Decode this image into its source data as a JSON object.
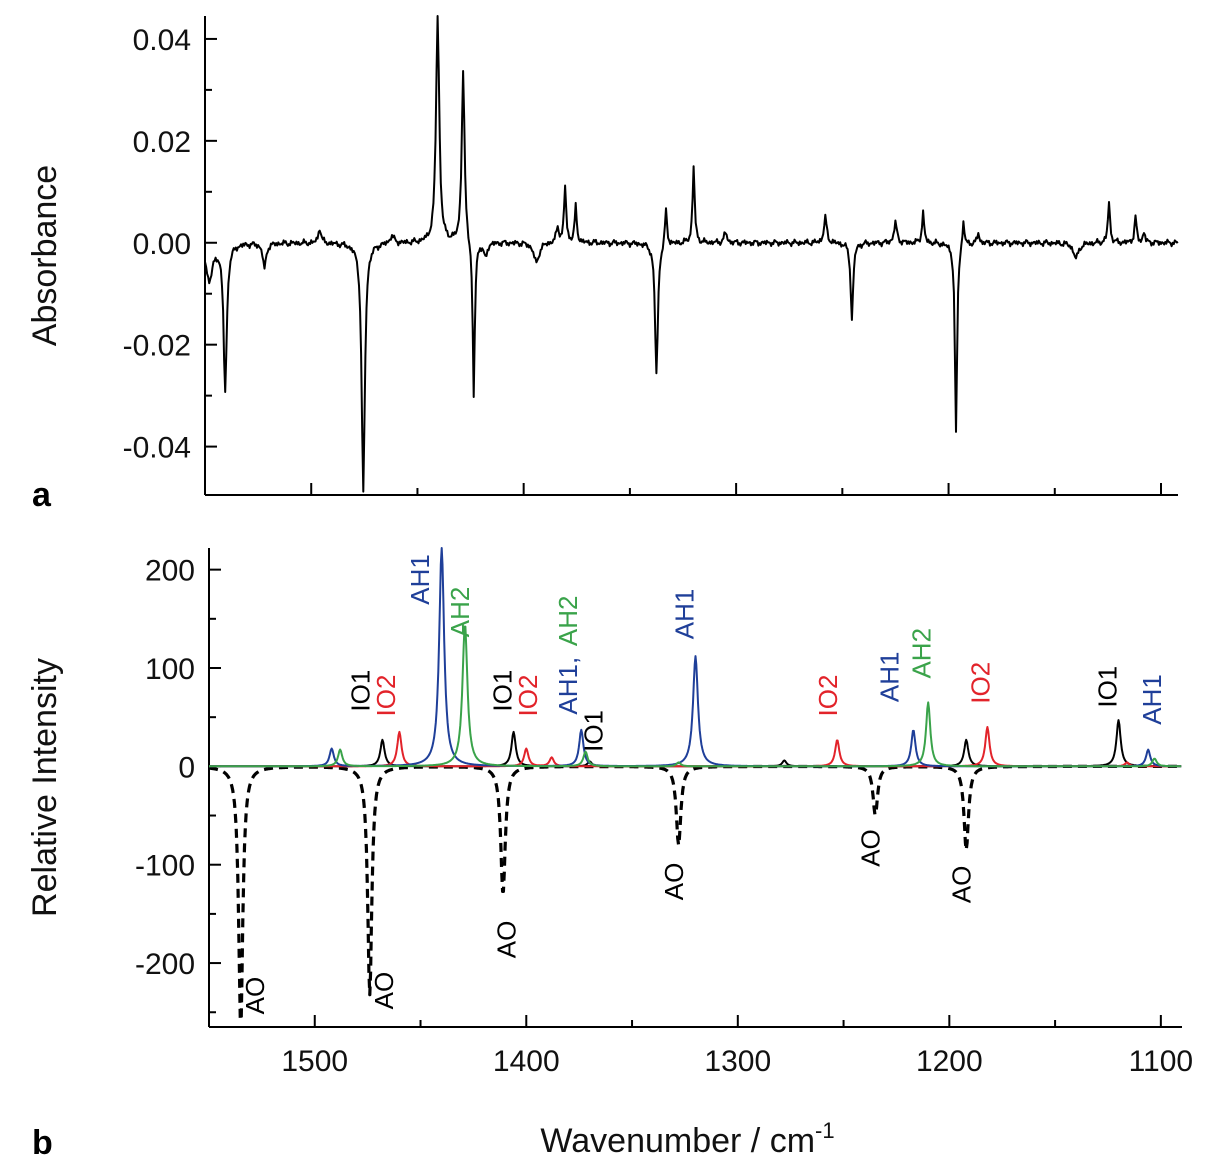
{
  "colors": {
    "black": "#000000",
    "blue": "#1f3f99",
    "green": "#3aa34a",
    "red": "#e2232a"
  },
  "chart_data": [
    {
      "panel": "a",
      "type": "line",
      "ylabel": "Absorbance",
      "xlim": [
        1550,
        1092
      ],
      "ylim": [
        -0.0495,
        0.0445
      ],
      "x_ticks": [
        1500,
        1400,
        1300,
        1200,
        1100
      ],
      "y_ticks": [
        0.04,
        0.02,
        0.0,
        -0.02,
        -0.04
      ],
      "y_tick_labels": [
        "0.04",
        "0.02",
        "0.00",
        "-0.02",
        "-0.04"
      ],
      "series": [
        {
          "color": "#000000",
          "baseline": 0.0,
          "peaks": [
            {
              "x": 1548,
              "y": -0.007,
              "w": 2.0
            },
            {
              "x": 1540.5,
              "y": -0.029,
              "w": 0.9
            },
            {
              "x": 1522,
              "y": -0.005,
              "w": 0.9
            },
            {
              "x": 1496,
              "y": 0.003,
              "w": 0.8
            },
            {
              "x": 1475.5,
              "y": -0.049,
              "w": 0.9
            },
            {
              "x": 1462,
              "y": 0.0015,
              "w": 1.2
            },
            {
              "x": 1440.5,
              "y": 0.045,
              "w": 0.9
            },
            {
              "x": 1428.5,
              "y": 0.034,
              "w": 0.8
            },
            {
              "x": 1423.5,
              "y": -0.031,
              "w": 0.6
            },
            {
              "x": 1418,
              "y": -0.003,
              "w": 0.9
            },
            {
              "x": 1394,
              "y": -0.004,
              "w": 1.5
            },
            {
              "x": 1384,
              "y": 0.003,
              "w": 0.8
            },
            {
              "x": 1380.5,
              "y": 0.011,
              "w": 0.6
            },
            {
              "x": 1375.5,
              "y": 0.007,
              "w": 0.6
            },
            {
              "x": 1337.5,
              "y": -0.026,
              "w": 0.8
            },
            {
              "x": 1333,
              "y": 0.007,
              "w": 0.6
            },
            {
              "x": 1320,
              "y": 0.015,
              "w": 0.6
            },
            {
              "x": 1305,
              "y": 0.002,
              "w": 0.8
            },
            {
              "x": 1258,
              "y": 0.005,
              "w": 0.8
            },
            {
              "x": 1245.5,
              "y": -0.015,
              "w": 0.7
            },
            {
              "x": 1225,
              "y": 0.004,
              "w": 0.8
            },
            {
              "x": 1212,
              "y": 0.006,
              "w": 0.6
            },
            {
              "x": 1196.5,
              "y": -0.038,
              "w": 0.6
            },
            {
              "x": 1193,
              "y": 0.005,
              "w": 0.6
            },
            {
              "x": 1186,
              "y": 0.002,
              "w": 0.6
            },
            {
              "x": 1140,
              "y": -0.003,
              "w": 1.5
            },
            {
              "x": 1124.5,
              "y": 0.008,
              "w": 0.6
            },
            {
              "x": 1112,
              "y": 0.005,
              "w": 0.6
            },
            {
              "x": 1108,
              "y": 0.002,
              "w": 0.6
            }
          ]
        }
      ]
    },
    {
      "panel": "b",
      "type": "line",
      "xlabel": "Wavenumber / cm",
      "xlabel_superscript": "-1",
      "ylabel": "Relative Intensity",
      "xlim": [
        1550,
        1090
      ],
      "ylim": [
        -265,
        222
      ],
      "x_ticks": [
        1500,
        1400,
        1300,
        1200,
        1100
      ],
      "x_tick_labels": [
        "1500",
        "1400",
        "1300",
        "1200",
        "1100"
      ],
      "y_ticks": [
        200,
        100,
        0,
        -100,
        -200
      ],
      "y_tick_labels": [
        "200",
        "100",
        "0",
        "-100",
        "-200"
      ],
      "series": [
        {
          "label": "AO",
          "color": "#000000",
          "dashed": true,
          "peaks": [
            {
              "x": 1535,
              "y": -265,
              "w": 1.2
            },
            {
              "x": 1474,
              "y": -232,
              "w": 1.2
            },
            {
              "x": 1411,
              "y": -130,
              "w": 1.3
            },
            {
              "x": 1328,
              "y": -80,
              "w": 1.3
            },
            {
              "x": 1235,
              "y": -50,
              "w": 1.3
            },
            {
              "x": 1192,
              "y": -85,
              "w": 1.3
            }
          ]
        },
        {
          "label": "IO1",
          "color": "#000000",
          "dashed": false,
          "peaks": [
            {
              "x": 1468,
              "y": 27,
              "w": 1.2
            },
            {
              "x": 1406,
              "y": 35,
              "w": 1.2
            },
            {
              "x": 1370,
              "y": 5,
              "w": 1.2
            },
            {
              "x": 1278,
              "y": 6,
              "w": 1.2
            },
            {
              "x": 1192,
              "y": 27,
              "w": 1.2
            },
            {
              "x": 1120,
              "y": 47,
              "w": 1.2
            }
          ]
        },
        {
          "label": "IO2",
          "color": "#e2232a",
          "dashed": false,
          "peaks": [
            {
              "x": 1460,
              "y": 35,
              "w": 1.2
            },
            {
              "x": 1400,
              "y": 18,
              "w": 1.2
            },
            {
              "x": 1388,
              "y": 9,
              "w": 1.2
            },
            {
              "x": 1253,
              "y": 27,
              "w": 1.2
            },
            {
              "x": 1182,
              "y": 40,
              "w": 1.2
            },
            {
              "x": 1116,
              "y": 4,
              "w": 1.2
            }
          ]
        },
        {
          "label": "AH1",
          "color": "#1f3f99",
          "dashed": false,
          "peaks": [
            {
              "x": 1492,
              "y": 18,
              "w": 1.2
            },
            {
              "x": 1440,
              "y": 222,
              "w": 1.4
            },
            {
              "x": 1374,
              "y": 37,
              "w": 1.2
            },
            {
              "x": 1320,
              "y": 112,
              "w": 1.4
            },
            {
              "x": 1217,
              "y": 37,
              "w": 1.2
            },
            {
              "x": 1106,
              "y": 17,
              "w": 1.2
            }
          ]
        },
        {
          "label": "AH2",
          "color": "#3aa34a",
          "dashed": false,
          "peaks": [
            {
              "x": 1488,
              "y": 17,
              "w": 1.2
            },
            {
              "x": 1429,
              "y": 145,
              "w": 1.4
            },
            {
              "x": 1372,
              "y": 15,
              "w": 1.2
            },
            {
              "x": 1328,
              "y": 4,
              "w": 1.2
            },
            {
              "x": 1210,
              "y": 65,
              "w": 1.2
            },
            {
              "x": 1103,
              "y": 8,
              "w": 1.2
            }
          ]
        }
      ],
      "annotations": [
        {
          "text": "AO",
          "color": "#000000",
          "x": 1524,
          "y": -233
        },
        {
          "text": "AO",
          "color": "#000000",
          "x": 1463,
          "y": -228
        },
        {
          "text": "AO",
          "color": "#000000",
          "x": 1405,
          "y": -176
        },
        {
          "text": "AO",
          "color": "#000000",
          "x": 1326,
          "y": -117
        },
        {
          "text": "AO",
          "color": "#000000",
          "x": 1233,
          "y": -83
        },
        {
          "text": "AO",
          "color": "#000000",
          "x": 1190,
          "y": -120
        },
        {
          "text": "IO1",
          "color": "#000000",
          "x": 1474,
          "y": 77
        },
        {
          "text": "IO2",
          "color": "#e2232a",
          "x": 1462,
          "y": 72
        },
        {
          "text": "AH1",
          "color": "#1f3f99",
          "x": 1446,
          "y": 190
        },
        {
          "text": "AH2",
          "color": "#3aa34a",
          "x": 1427,
          "y": 157
        },
        {
          "text": "IO1",
          "color": "#000000",
          "x": 1407,
          "y": 77
        },
        {
          "text": "IO2",
          "color": "#e2232a",
          "x": 1395,
          "y": 72
        },
        {
          "text": "AH1,",
          "color": "#1f3f99",
          "x": 1376,
          "y": 82
        },
        {
          "text": "AH2",
          "color": "#3aa34a",
          "x": 1376,
          "y": 148
        },
        {
          "text": "IO1",
          "color": "#000000",
          "x": 1364,
          "y": 36
        },
        {
          "text": "AH1",
          "color": "#1f3f99",
          "x": 1321,
          "y": 155
        },
        {
          "text": "IO2",
          "color": "#e2232a",
          "x": 1253,
          "y": 72
        },
        {
          "text": "AH1",
          "color": "#1f3f99",
          "x": 1224,
          "y": 91
        },
        {
          "text": "AH2",
          "color": "#3aa34a",
          "x": 1209,
          "y": 115
        },
        {
          "text": "IO2",
          "color": "#e2232a",
          "x": 1181,
          "y": 85
        },
        {
          "text": "IO1",
          "color": "#000000",
          "x": 1121,
          "y": 81
        },
        {
          "text": "AH1",
          "color": "#1f3f99",
          "x": 1100,
          "y": 68
        }
      ]
    }
  ]
}
